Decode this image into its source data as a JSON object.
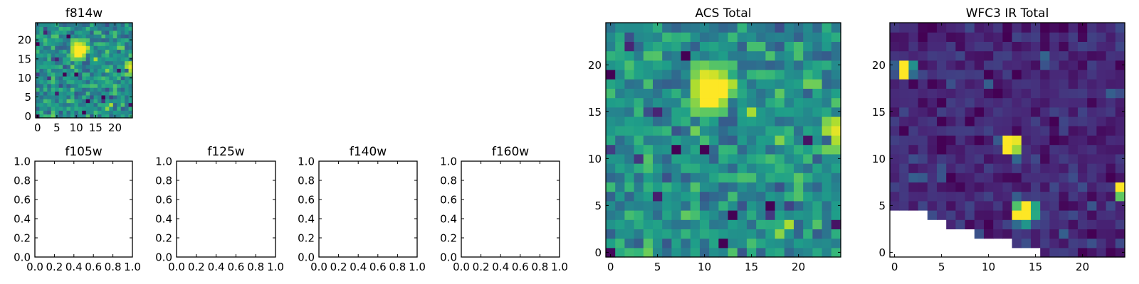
{
  "chart_data": [
    {
      "id": "f814w",
      "type": "heatmap",
      "title": "f814w",
      "colormap": "viridis",
      "shape": [
        25,
        25
      ],
      "xlim": [
        -0.5,
        24.5
      ],
      "ylim": [
        -0.5,
        24.5
      ],
      "xticks": [
        0,
        5,
        10,
        15,
        20
      ],
      "yticks": [
        0,
        5,
        10,
        15,
        20
      ],
      "background": {
        "mean": 0.5,
        "std": 0.12,
        "seed": 7
      },
      "features": [
        {
          "x": 10,
          "y": 16,
          "v": 1.0
        },
        {
          "x": 10,
          "y": 17,
          "v": 1.0
        },
        {
          "x": 10,
          "y": 18,
          "v": 1.0
        },
        {
          "x": 11,
          "y": 16,
          "v": 1.0
        },
        {
          "x": 11,
          "y": 17,
          "v": 1.0
        },
        {
          "x": 11,
          "y": 18,
          "v": 1.0
        },
        {
          "x": 12,
          "y": 17,
          "v": 1.0
        },
        {
          "x": 12,
          "y": 18,
          "v": 1.0
        },
        {
          "x": 10,
          "y": 19,
          "v": 0.95
        },
        {
          "x": 11,
          "y": 19,
          "v": 0.93
        },
        {
          "x": 12,
          "y": 19,
          "v": 0.85
        },
        {
          "x": 9,
          "y": 15,
          "v": 0.78
        },
        {
          "x": 9,
          "y": 16,
          "v": 0.82
        },
        {
          "x": 9,
          "y": 17,
          "v": 0.88
        },
        {
          "x": 9,
          "y": 18,
          "v": 0.88
        },
        {
          "x": 9,
          "y": 19,
          "v": 0.8
        },
        {
          "x": 13,
          "y": 18,
          "v": 0.88
        },
        {
          "x": 13,
          "y": 17,
          "v": 0.75
        },
        {
          "x": 12,
          "y": 16,
          "v": 0.85
        },
        {
          "x": 10,
          "y": 15,
          "v": 0.75
        },
        {
          "x": 11,
          "y": 15,
          "v": 0.75
        },
        {
          "x": 12,
          "y": 15,
          "v": 0.72
        },
        {
          "x": 9,
          "y": 20,
          "v": 0.75
        },
        {
          "x": 10,
          "y": 20,
          "v": 0.78
        },
        {
          "x": 24,
          "y": 13,
          "v": 0.96
        },
        {
          "x": 23,
          "y": 13,
          "v": 0.86
        },
        {
          "x": 24,
          "y": 14,
          "v": 0.88
        },
        {
          "x": 24,
          "y": 12,
          "v": 0.88
        },
        {
          "x": 23,
          "y": 14,
          "v": 0.8
        },
        {
          "x": 23,
          "y": 11,
          "v": 0.78
        },
        {
          "x": 24,
          "y": 11,
          "v": 0.78
        },
        {
          "x": 8,
          "y": 21,
          "v": 0.0
        },
        {
          "x": 0,
          "y": 19,
          "v": 0.0
        },
        {
          "x": 7,
          "y": 11,
          "v": 0.0
        },
        {
          "x": 10,
          "y": 11,
          "v": 0.0
        },
        {
          "x": 13,
          "y": 4,
          "v": 0.0
        },
        {
          "x": 17,
          "y": 5,
          "v": 0.0
        },
        {
          "x": 12,
          "y": 1,
          "v": 0.0
        },
        {
          "x": 0,
          "y": 0,
          "v": 0.02
        },
        {
          "x": 21,
          "y": 12,
          "v": 0.05
        },
        {
          "x": 24,
          "y": 3,
          "v": 0.05
        },
        {
          "x": 5,
          "y": 6,
          "v": 0.08
        },
        {
          "x": 5,
          "y": 15,
          "v": 0.1
        },
        {
          "x": 2,
          "y": 22,
          "v": 0.1
        }
      ],
      "mask": []
    },
    {
      "id": "f105w",
      "type": "empty",
      "title": "f105w",
      "xlim": [
        0,
        1
      ],
      "ylim": [
        0,
        1
      ],
      "xticks": [
        "0.0",
        "0.2",
        "0.4",
        "0.6",
        "0.8",
        "1.0"
      ],
      "yticks": [
        "0.0",
        "0.2",
        "0.4",
        "0.6",
        "0.8",
        "1.0"
      ]
    },
    {
      "id": "f125w",
      "type": "empty",
      "title": "f125w",
      "xlim": [
        0,
        1
      ],
      "ylim": [
        0,
        1
      ],
      "xticks": [
        "0.0",
        "0.2",
        "0.4",
        "0.6",
        "0.8",
        "1.0"
      ],
      "yticks": [
        "0.0",
        "0.2",
        "0.4",
        "0.6",
        "0.8",
        "1.0"
      ]
    },
    {
      "id": "f140w",
      "type": "empty",
      "title": "f140w",
      "xlim": [
        0,
        1
      ],
      "ylim": [
        0,
        1
      ],
      "xticks": [
        "0.0",
        "0.2",
        "0.4",
        "0.6",
        "0.8",
        "1.0"
      ],
      "yticks": [
        "0.0",
        "0.2",
        "0.4",
        "0.6",
        "0.8",
        "1.0"
      ]
    },
    {
      "id": "f160w",
      "type": "empty",
      "title": "f160w",
      "xlim": [
        0,
        1
      ],
      "ylim": [
        0,
        1
      ],
      "xticks": [
        "0.0",
        "0.2",
        "0.4",
        "0.6",
        "0.8",
        "1.0"
      ],
      "yticks": [
        "0.0",
        "0.2",
        "0.4",
        "0.6",
        "0.8",
        "1.0"
      ]
    },
    {
      "id": "acs_total",
      "type": "heatmap",
      "title": "ACS Total",
      "colormap": "viridis",
      "shape": [
        25,
        25
      ],
      "xlim": [
        -0.5,
        24.5
      ],
      "ylim": [
        -0.5,
        24.5
      ],
      "xticks": [
        0,
        5,
        10,
        15,
        20
      ],
      "yticks": [
        0,
        5,
        10,
        15,
        20
      ],
      "background": {
        "mean": 0.5,
        "std": 0.12,
        "seed": 7
      },
      "features_ref": "f814w",
      "mask": []
    },
    {
      "id": "wfc3_ir_total",
      "type": "heatmap",
      "title": "WFC3 IR Total",
      "colormap": "viridis",
      "shape": [
        25,
        25
      ],
      "xlim": [
        -0.5,
        24.5
      ],
      "ylim": [
        -0.5,
        24.5
      ],
      "xticks": [
        0,
        5,
        10,
        15,
        20
      ],
      "yticks": [
        0,
        5,
        10,
        15,
        20
      ],
      "background": {
        "mean": 0.11,
        "std": 0.06,
        "seed": 23
      },
      "features": [
        {
          "x": 1,
          "y": 19,
          "v": 1.0
        },
        {
          "x": 1,
          "y": 20,
          "v": 1.0
        },
        {
          "x": 2,
          "y": 20,
          "v": 0.5
        },
        {
          "x": 2,
          "y": 19,
          "v": 0.35
        },
        {
          "x": 0,
          "y": 20,
          "v": 0.3
        },
        {
          "x": 0,
          "y": 19,
          "v": 0.25
        },
        {
          "x": 12,
          "y": 11,
          "v": 1.0
        },
        {
          "x": 12,
          "y": 12,
          "v": 1.0
        },
        {
          "x": 13,
          "y": 12,
          "v": 0.97
        },
        {
          "x": 13,
          "y": 11,
          "v": 0.85
        },
        {
          "x": 13,
          "y": 10,
          "v": 0.33
        },
        {
          "x": 11,
          "y": 12,
          "v": 0.28
        },
        {
          "x": 13,
          "y": 4,
          "v": 1.0
        },
        {
          "x": 14,
          "y": 4,
          "v": 1.0
        },
        {
          "x": 14,
          "y": 5,
          "v": 1.0
        },
        {
          "x": 13,
          "y": 5,
          "v": 0.72
        },
        {
          "x": 15,
          "y": 5,
          "v": 0.58
        },
        {
          "x": 15,
          "y": 4,
          "v": 0.6
        },
        {
          "x": 14,
          "y": 3,
          "v": 0.52
        },
        {
          "x": 13,
          "y": 3,
          "v": 0.35
        },
        {
          "x": 24,
          "y": 7,
          "v": 1.0
        },
        {
          "x": 24,
          "y": 6,
          "v": 0.75
        },
        {
          "x": 16,
          "y": 21,
          "v": 0.32
        },
        {
          "x": 10,
          "y": 18,
          "v": 0.3
        },
        {
          "x": 2,
          "y": 8,
          "v": 0.3
        },
        {
          "x": 3,
          "y": 8,
          "v": 0.28
        },
        {
          "x": 23,
          "y": 17,
          "v": 0.3
        },
        {
          "x": 18,
          "y": 2,
          "v": 0.3
        }
      ],
      "mask": [
        {
          "y": 4,
          "x_from": 0,
          "x_to": 3
        },
        {
          "y": 3,
          "x_from": 0,
          "x_to": 5
        },
        {
          "y": 2,
          "x_from": 0,
          "x_to": 8
        },
        {
          "y": 1,
          "x_from": 0,
          "x_to": 12
        },
        {
          "y": 0,
          "x_from": 0,
          "x_to": 15
        }
      ]
    }
  ]
}
